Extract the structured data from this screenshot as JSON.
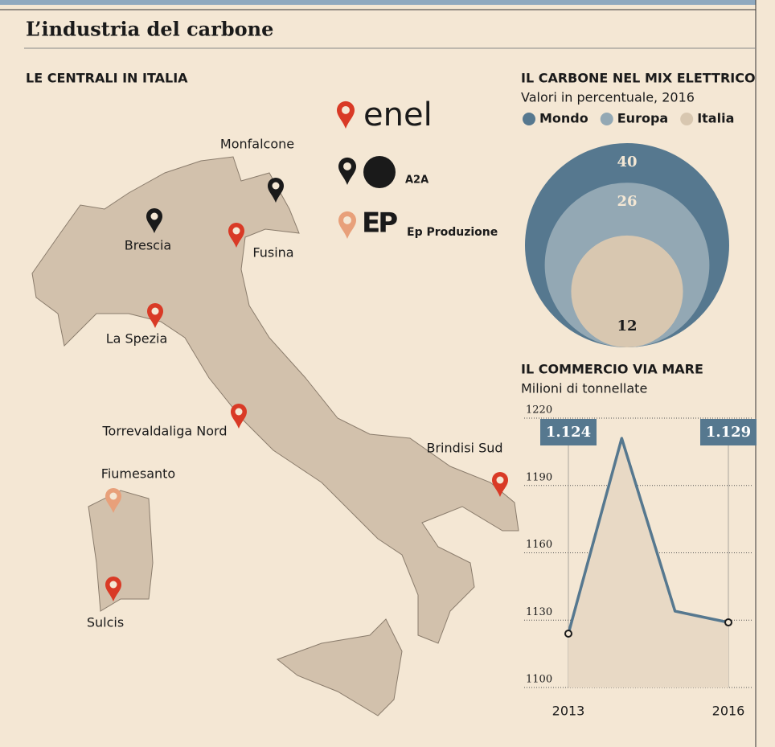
{
  "title": "L’industria del carbone",
  "map": {
    "title": "LE CENTRALI IN ITALIA",
    "legend": [
      {
        "logo": "enel",
        "color": "#d93a26"
      },
      {
        "logo": "A2A",
        "color": "#1a1a1a"
      },
      {
        "logo": "EP",
        "name": "Ep Produzione",
        "color": "#e8a07a"
      }
    ],
    "plants": [
      {
        "name": "Monfalcone",
        "color": "#1a1a1a"
      },
      {
        "name": "Brescia",
        "color": "#1a1a1a"
      },
      {
        "name": "Fusina",
        "color": "#d93a26"
      },
      {
        "name": "La Spezia",
        "color": "#d93a26"
      },
      {
        "name": "Torrevaldaliga Nord",
        "color": "#d93a26"
      },
      {
        "name": "Brindisi Sud",
        "color": "#d93a26"
      },
      {
        "name": "Fiumesanto",
        "color": "#e8a07a"
      },
      {
        "name": "Sulcis",
        "color": "#d93a26"
      }
    ]
  },
  "chart_data": [
    {
      "type": "nested-circle",
      "title": "IL CARBONE NEL MIX ELETTRICO",
      "subtitle": "Valori in percentuale, 2016",
      "categories": [
        "Mondo",
        "Europa",
        "Italia"
      ],
      "values": [
        40,
        26,
        12
      ],
      "colors": [
        "#56788f",
        "#93a8b4",
        "#d8c7b0"
      ]
    },
    {
      "type": "line",
      "title": "IL COMMERCIO VIA MARE",
      "subtitle": "Milioni di tonnellate",
      "x": [
        2013,
        2014,
        2015,
        2016
      ],
      "values": [
        1124,
        1211,
        1134,
        1129
      ],
      "value_labels": [
        "1.124",
        null,
        null,
        "1.129"
      ],
      "color": "#56788f",
      "xlim": [
        2013,
        2016
      ],
      "xticks": [
        2013,
        2016
      ],
      "ylim": [
        1100,
        1220
      ],
      "yticks": [
        1100,
        1130,
        1160,
        1190,
        1220
      ],
      "grid": true
    }
  ]
}
